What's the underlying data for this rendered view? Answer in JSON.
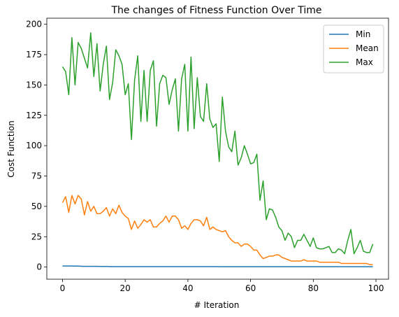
{
  "chart_data": {
    "type": "line",
    "title": "The changes of Fitness Function Over Time",
    "xlabel": "# Iteration",
    "ylabel": "Cost Function",
    "xlim": [
      -5,
      104
    ],
    "ylim": [
      -10,
      205
    ],
    "xticks": [
      0,
      20,
      40,
      60,
      80,
      100
    ],
    "yticks": [
      0,
      25,
      50,
      75,
      100,
      125,
      150,
      175,
      200
    ],
    "grid": false,
    "legend_position": "top-right",
    "series": [
      {
        "name": "Min",
        "color": "#1f77b4",
        "values": [
          0.9,
          0.9,
          0.9,
          0.9,
          0.8,
          0.8,
          0.7,
          0.6,
          0.6,
          0.6,
          0.6,
          0.6,
          0.5,
          0.5,
          0.5,
          0.4,
          0.4,
          0.4,
          0.4,
          0.4,
          0.4,
          0.4,
          0.4,
          0.4,
          0.4,
          0.4,
          0.4,
          0.4,
          0.4,
          0.4,
          0.4,
          0.4,
          0.4,
          0.4,
          0.4,
          0.4,
          0.4,
          0.4,
          0.4,
          0.4,
          0.4,
          0.4,
          0.4,
          0.4,
          0.4,
          0.4,
          0.4,
          0.4,
          0.4,
          0.4,
          0.3,
          0.3,
          0.3,
          0.3,
          0.3,
          0.3,
          0.3,
          0.3,
          0.3,
          0.3,
          0.3,
          0.3,
          0.3,
          0.3,
          0.3,
          0.3,
          0.3,
          0.3,
          0.3,
          0.3,
          0.3,
          0.3,
          0.3,
          0.3,
          0.3,
          0.3,
          0.3,
          0.3,
          0.3,
          0.3,
          0.3,
          0.3,
          0.3,
          0.3,
          0.3,
          0.3,
          0.3,
          0.3,
          0.3,
          0.3,
          0.3,
          0.3,
          0.3,
          0.3,
          0.3,
          0.3,
          0.3,
          0.3,
          0.3,
          0.3
        ]
      },
      {
        "name": "Mean",
        "color": "#ff7f0e",
        "values": [
          53,
          58,
          45,
          59,
          52,
          59,
          56,
          43,
          54,
          46,
          50,
          44,
          44,
          46,
          49,
          42,
          48,
          44,
          51,
          45,
          42,
          40,
          31,
          38,
          32,
          35,
          39,
          37,
          39,
          33,
          33,
          36,
          38,
          42,
          37,
          42,
          42,
          39,
          32,
          34,
          31,
          36,
          39,
          39,
          38,
          34,
          41,
          31,
          33,
          31,
          30,
          29,
          30,
          25,
          22,
          20,
          20,
          17,
          19,
          19,
          17,
          14,
          14,
          10,
          7,
          8,
          9,
          9,
          10,
          10,
          8,
          7,
          6,
          5,
          5,
          5,
          5,
          6,
          5,
          5,
          5,
          5,
          4,
          4,
          4,
          4,
          4,
          4,
          4,
          3,
          3,
          3,
          3,
          3,
          3,
          3,
          3,
          3,
          2,
          2
        ]
      },
      {
        "name": "Max",
        "color": "#2ca02c",
        "values": [
          165,
          161,
          142,
          189,
          150,
          185,
          180,
          172,
          164,
          193,
          157,
          184,
          145,
          167,
          182,
          138,
          152,
          179,
          174,
          167,
          142,
          151,
          105,
          154,
          174,
          120,
          162,
          120,
          162,
          170,
          116,
          151,
          158,
          156,
          134,
          146,
          155,
          112,
          155,
          167,
          112,
          173,
          114,
          156,
          124,
          120,
          151,
          122,
          115,
          118,
          87,
          140,
          112,
          99,
          95,
          112,
          84,
          90,
          100,
          93,
          85,
          86,
          93,
          55,
          71,
          39,
          48,
          47,
          41,
          33,
          30,
          22,
          28,
          25,
          16,
          22,
          22,
          27,
          22,
          17,
          24,
          16,
          15,
          15,
          16,
          17,
          12,
          12,
          15,
          14,
          11,
          22,
          31,
          11,
          16,
          22,
          13,
          12,
          12,
          19
        ]
      }
    ]
  }
}
